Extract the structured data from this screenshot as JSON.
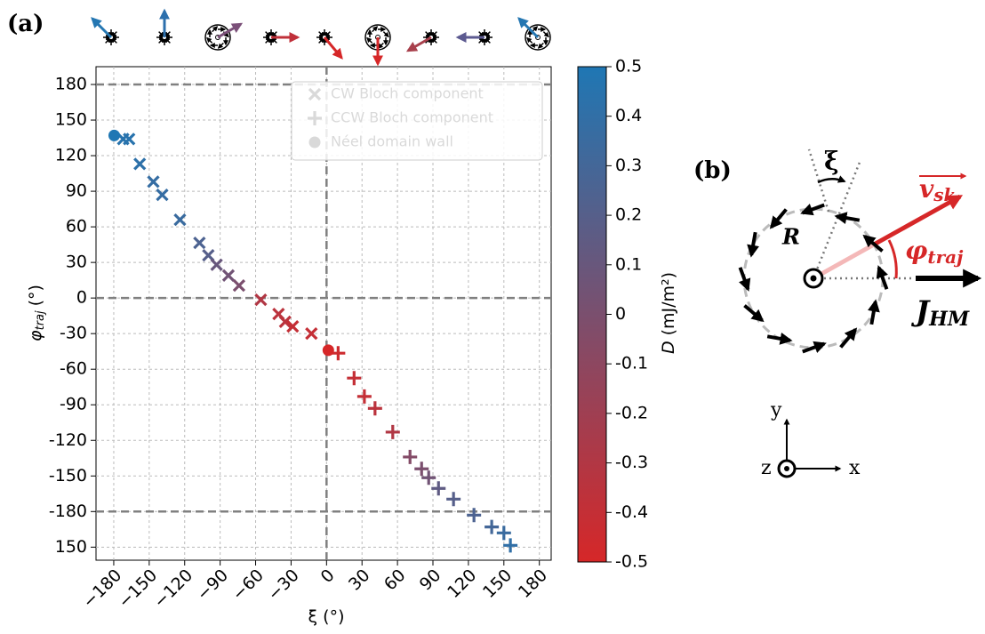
{
  "chart_data": {
    "type": "scatter",
    "panel_label": "(a)",
    "x_label": "ξ (°)",
    "y_label": {
      "symbol": "φ",
      "subscript": "traj",
      "unit": "(°)"
    },
    "xlim": [
      -195,
      190
    ],
    "ylim": [
      -221,
      195
    ],
    "xticks": [
      {
        "value": -180,
        "label": "−180"
      },
      {
        "value": -150,
        "label": "−150"
      },
      {
        "value": -120,
        "label": "−120"
      },
      {
        "value": -90,
        "label": "−90"
      },
      {
        "value": -60,
        "label": "−60"
      },
      {
        "value": -30,
        "label": "−30"
      },
      0,
      30,
      60,
      90,
      120,
      150,
      180
    ],
    "yticks": [
      180,
      150,
      120,
      90,
      60,
      30,
      0,
      -30,
      -60,
      -90,
      -120,
      -150,
      -180,
      {
        "value": -210,
        "label": "150"
      }
    ],
    "grid": true,
    "reference_lines": {
      "x": [
        0
      ],
      "y": [
        180,
        0,
        -180
      ]
    },
    "colormap": [
      "#d62728",
      "#1f77b4"
    ],
    "clim": [
      -0.5,
      0.5
    ],
    "colorbar": {
      "label": {
        "symbol": "D",
        "unit": "(mJ/m²)"
      },
      "ticks": [
        0.5,
        0.4,
        0.3,
        0.2,
        0.1,
        0,
        -0.1,
        -0.2,
        -0.3,
        -0.4,
        -0.5
      ]
    },
    "legend": "upper right",
    "series": [
      {
        "name": "CW Bloch component",
        "marker": "x",
        "x": [
          -172,
          -167,
          -158,
          -146.5,
          -139,
          -124,
          -107.5,
          -100,
          -93,
          -83,
          -74,
          -55.6,
          -40.6,
          -35,
          -28.6,
          -12.8
        ],
        "y": [
          134,
          134,
          113,
          98,
          87,
          66,
          46.5,
          36,
          28,
          19,
          10.5,
          -1.5,
          -13.5,
          -20,
          -24,
          -30
        ],
        "D": [
          0.45,
          0.45,
          0.42,
          0.38,
          0.38,
          0.35,
          0.25,
          0.2,
          0.1,
          0.05,
          0,
          -0.3,
          -0.35,
          -0.35,
          -0.4,
          -0.4
        ]
      },
      {
        "name": "CCW Bloch component",
        "marker": "plus",
        "x": [
          9.8,
          23.3,
          32,
          41,
          56,
          70.6,
          80.4,
          86.4,
          94.7,
          107.4,
          124.7,
          139.7,
          150,
          155.5
        ],
        "y": [
          -46.5,
          -67.5,
          -83,
          -93,
          -113,
          -134,
          -144,
          -151.5,
          -160.5,
          -169.5,
          -183,
          -193,
          -198,
          -208.5
        ],
        "D": [
          -0.45,
          -0.4,
          -0.4,
          -0.35,
          -0.3,
          -0.05,
          0,
          0.05,
          0.15,
          0.2,
          0.25,
          0.3,
          0.35,
          0.4
        ]
      },
      {
        "name": "Néel domain wall",
        "marker": "circle",
        "x": [
          -179.6,
          1.5
        ],
        "y": [
          137,
          -44
        ],
        "D": [
          0.5,
          -0.5
        ]
      }
    ]
  },
  "diagram": {
    "panel_label": "(b)",
    "angle_xi": "ξ",
    "radius": "R",
    "velocity": {
      "symbol": "v",
      "subscript": "sk"
    },
    "trajectory_angle": {
      "symbol": "φ",
      "subscript": "traj"
    },
    "current": {
      "symbol": "J",
      "subscript": "HM"
    },
    "axes": {
      "y": "y",
      "x": "x",
      "z": "z"
    }
  }
}
